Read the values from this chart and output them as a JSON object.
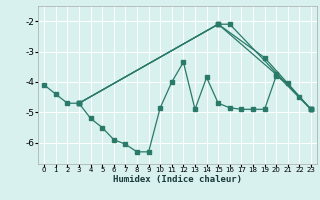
{
  "xlabel": "Humidex (Indice chaleur)",
  "bg_color": "#d8f0ee",
  "grid_color": "#ffffff",
  "line_color": "#2a7a6a",
  "xlim": [
    -0.5,
    23.5
  ],
  "ylim": [
    -6.7,
    -1.5
  ],
  "yticks": [
    -6,
    -5,
    -4,
    -3,
    -2
  ],
  "xticks": [
    0,
    1,
    2,
    3,
    4,
    5,
    6,
    7,
    8,
    9,
    10,
    11,
    12,
    13,
    14,
    15,
    16,
    17,
    18,
    19,
    20,
    21,
    22,
    23
  ],
  "line1_x": [
    0,
    1,
    2,
    3,
    4,
    5,
    6,
    7,
    8,
    9,
    10,
    11,
    12,
    13,
    14,
    15,
    16,
    17,
    18,
    19,
    20,
    21,
    22,
    23
  ],
  "line1_y": [
    -4.1,
    -4.4,
    -4.7,
    -4.7,
    -5.2,
    -5.5,
    -5.9,
    -6.05,
    -6.3,
    -6.3,
    -4.85,
    -4.0,
    -3.35,
    -4.9,
    -3.85,
    -4.7,
    -4.85,
    -4.9,
    -4.9,
    -4.9,
    -3.8,
    -4.05,
    -4.5,
    -4.9
  ],
  "line2_x": [
    3,
    15,
    16,
    23
  ],
  "line2_y": [
    -4.7,
    -2.1,
    -2.1,
    -4.9
  ],
  "line3_x": [
    3,
    15,
    19,
    23
  ],
  "line3_y": [
    -4.7,
    -2.1,
    -3.2,
    -4.9
  ],
  "line4_x": [
    3,
    15,
    20,
    23
  ],
  "line4_y": [
    -4.7,
    -2.1,
    -3.75,
    -4.9
  ]
}
